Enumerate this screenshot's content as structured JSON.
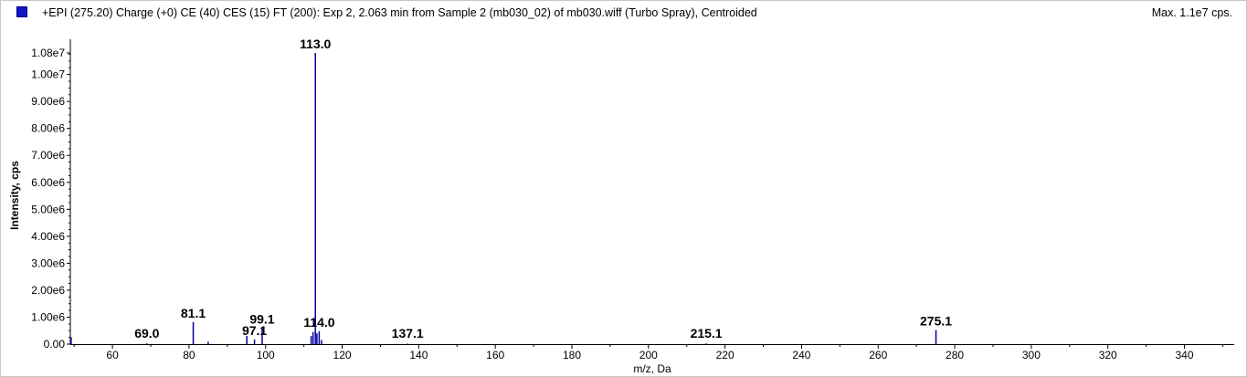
{
  "header": {
    "title": "+EPI (275.20) Charge (+0) CE (40) CES (15) FT (200): Exp 2, 2.063 min from Sample 2 (mb030_02) of mb030.wiff (Turbo Spray), Centroided",
    "max_label": "Max. 1.1e7 cps."
  },
  "colors": {
    "series": "#0000a0",
    "swatch": "#1414c8",
    "axis": "#000000"
  },
  "chart_data": {
    "type": "bar",
    "xlabel": "m/z, Da",
    "ylabel": "Intensity, cps",
    "xlim": [
      49,
      353
    ],
    "ylim": [
      0,
      10800000
    ],
    "x_ticks": [
      60,
      80,
      100,
      120,
      140,
      160,
      180,
      200,
      220,
      240,
      260,
      280,
      300,
      320,
      340
    ],
    "y_ticks": [
      {
        "value": 0,
        "label": "0.00"
      },
      {
        "value": 1000000,
        "label": "1.00e6"
      },
      {
        "value": 2000000,
        "label": "2.00e6"
      },
      {
        "value": 3000000,
        "label": "3.00e6"
      },
      {
        "value": 4000000,
        "label": "4.00e6"
      },
      {
        "value": 5000000,
        "label": "5.00e6"
      },
      {
        "value": 6000000,
        "label": "6.00e6"
      },
      {
        "value": 7000000,
        "label": "7.00e6"
      },
      {
        "value": 8000000,
        "label": "8.00e6"
      },
      {
        "value": 9000000,
        "label": "9.00e6"
      },
      {
        "value": 10000000,
        "label": "1.00e7"
      },
      {
        "value": 10800000,
        "label": "1.08e7"
      }
    ],
    "peaks": [
      {
        "mz": 49.2,
        "intensity": 250000
      },
      {
        "mz": 69.0,
        "intensity": 30000,
        "label": "69.0"
      },
      {
        "mz": 81.1,
        "intensity": 820000,
        "label": "81.1"
      },
      {
        "mz": 85.0,
        "intensity": 90000
      },
      {
        "mz": 95.1,
        "intensity": 300000
      },
      {
        "mz": 97.1,
        "intensity": 170000,
        "label": "97.1"
      },
      {
        "mz": 99.1,
        "intensity": 600000,
        "label": "99.1"
      },
      {
        "mz": 111.9,
        "intensity": 300000
      },
      {
        "mz": 112.4,
        "intensity": 450000
      },
      {
        "mz": 113.0,
        "intensity": 10800000,
        "label": "113.0"
      },
      {
        "mz": 113.4,
        "intensity": 400000
      },
      {
        "mz": 114.0,
        "intensity": 480000,
        "label": "114.0"
      },
      {
        "mz": 114.6,
        "intensity": 150000
      },
      {
        "mz": 137.1,
        "intensity": 20000,
        "label": "137.1"
      },
      {
        "mz": 215.1,
        "intensity": 30000,
        "label": "215.1"
      },
      {
        "mz": 275.1,
        "intensity": 520000,
        "label": "275.1"
      }
    ]
  }
}
